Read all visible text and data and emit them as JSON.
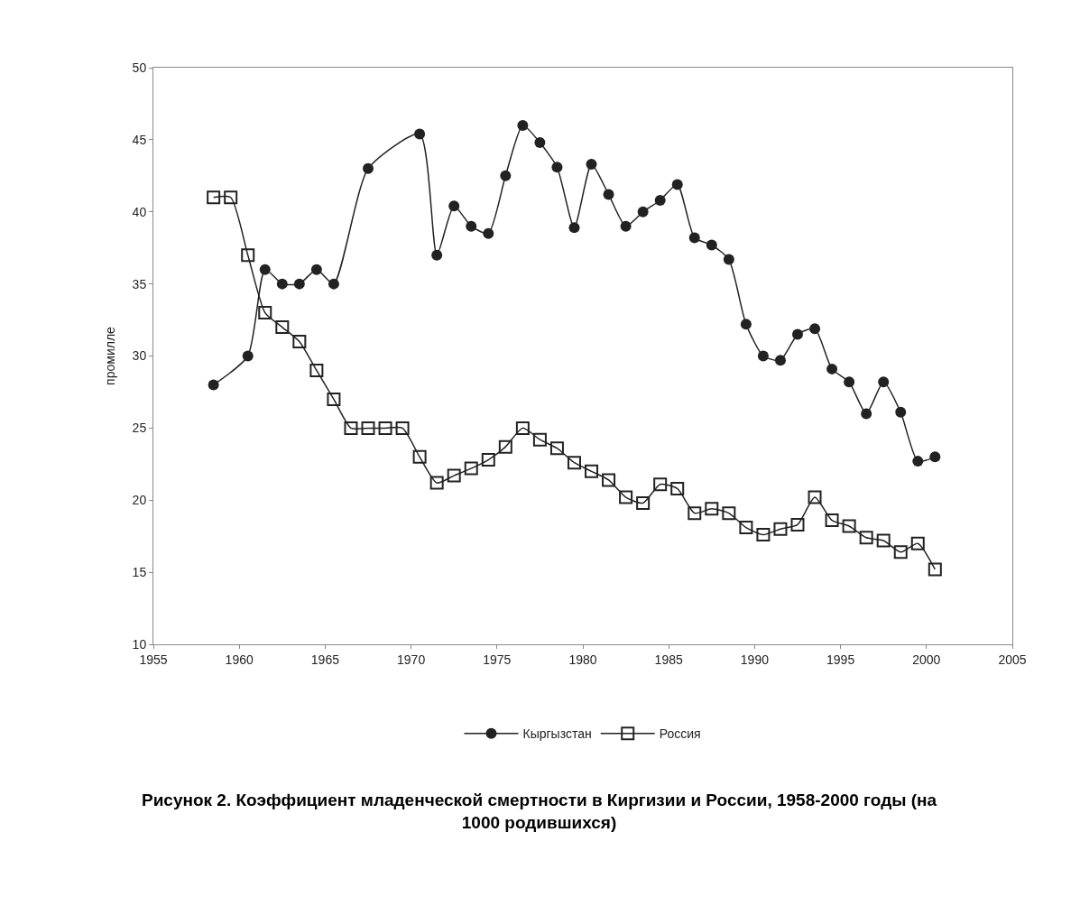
{
  "chart_data": {
    "type": "line",
    "title": "Рисунок 2. Коэффициент младенческой смертности в Киргизии и России, 1958-2000 годы (на 1000 родившихся)",
    "ylabel": "промилле",
    "xlim": [
      1955,
      2005
    ],
    "xticks": [
      1955,
      1960,
      1965,
      1970,
      1975,
      1980,
      1985,
      1990,
      1995,
      2000,
      2005
    ],
    "ylim": [
      10,
      50
    ],
    "yticks": [
      10,
      15,
      20,
      25,
      30,
      35,
      40,
      45,
      50
    ],
    "grid": false,
    "legend": "bottom",
    "line_style": "solid",
    "series": [
      {
        "name": "Кыргызстан",
        "color": "#222222",
        "marker": "circle",
        "x": [
          1958.5,
          1960.5,
          1961.5,
          1962.5,
          1963.5,
          1964.5,
          1965.5,
          1967.5,
          1970.5,
          1971.5,
          1972.5,
          1973.5,
          1974.5,
          1975.5,
          1976.5,
          1977.5,
          1978.5,
          1979.5,
          1980.5,
          1981.5,
          1982.5,
          1983.5,
          1984.5,
          1985.5,
          1986.5,
          1987.5,
          1988.5,
          1989.5,
          1990.5,
          1991.5,
          1992.5,
          1993.5,
          1994.5,
          1995.5,
          1996.5,
          1997.5,
          1998.5,
          1999.5,
          2000.5
        ],
        "values": [
          28,
          30,
          36,
          35,
          35,
          36,
          35,
          43,
          45.4,
          37,
          40.4,
          39,
          38.5,
          42.5,
          46,
          44.8,
          43.1,
          38.9,
          43.3,
          41.2,
          39,
          40,
          40.8,
          41.9,
          38.2,
          37.7,
          36.7,
          32.2,
          30,
          29.7,
          31.5,
          31.9,
          29.1,
          28.2,
          26,
          28.2,
          26.1,
          22.7,
          23
        ]
      },
      {
        "name": "Россия",
        "color": "#222222",
        "marker": "square",
        "x": [
          1958.5,
          1959.5,
          1960.5,
          1961.5,
          1962.5,
          1963.5,
          1964.5,
          1965.5,
          1966.5,
          1967.5,
          1968.5,
          1969.5,
          1970.5,
          1971.5,
          1972.5,
          1973.5,
          1974.5,
          1975.5,
          1976.5,
          1977.5,
          1978.5,
          1979.5,
          1980.5,
          1981.5,
          1982.5,
          1983.5,
          1984.5,
          1985.5,
          1986.5,
          1987.5,
          1988.5,
          1989.5,
          1990.5,
          1991.5,
          1992.5,
          1993.5,
          1994.5,
          1995.5,
          1996.5,
          1997.5,
          1998.5,
          1999.5,
          2000.5
        ],
        "values": [
          41,
          41,
          37,
          33,
          32,
          31,
          29,
          27,
          25,
          25,
          25,
          25,
          23,
          21.2,
          21.7,
          22.2,
          22.8,
          23.7,
          25,
          24.2,
          23.6,
          22.6,
          22,
          21.4,
          20.2,
          19.8,
          21.1,
          20.8,
          19.1,
          19.4,
          19.1,
          18.1,
          17.6,
          18,
          18.3,
          20.2,
          18.6,
          18.2,
          17.4,
          17.2,
          16.4,
          17,
          15.2
        ]
      }
    ]
  }
}
